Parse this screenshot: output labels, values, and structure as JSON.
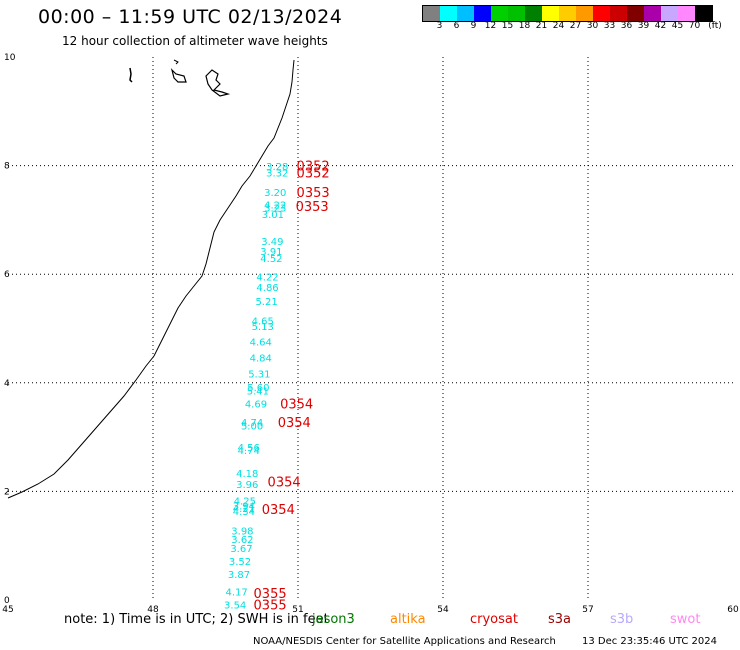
{
  "header": {
    "title": "00:00 – 11:59 UTC 02/13/2024",
    "subtitle": "12 hour collection of altimeter wave heights"
  },
  "legend": {
    "unit": "(ft)",
    "colors": [
      "#808080",
      "#00ffff",
      "#00bfff",
      "#0000ff",
      "#00d000",
      "#00c000",
      "#008000",
      "#ffff00",
      "#ffcc00",
      "#ff9900",
      "#ff0000",
      "#cc0000",
      "#800000",
      "#aa00aa",
      "#c8a8ff",
      "#ff88ff",
      "#000000"
    ],
    "labels": [
      "3",
      "6",
      "9",
      "12",
      "15",
      "18",
      "21",
      "24",
      "27",
      "30",
      "33",
      "36",
      "39",
      "42",
      "45",
      "70"
    ]
  },
  "axes": {
    "x_labels": [
      "45",
      "48",
      "51",
      "54",
      "57",
      "60"
    ],
    "y_labels": [
      "10",
      "8",
      "6",
      "4",
      "2",
      "0"
    ]
  },
  "observations": [
    {
      "lon": 50.57,
      "lat": 7.99,
      "text": "3.28",
      "color": "#00e0e0"
    },
    {
      "lon": 50.57,
      "lat": 7.87,
      "text": "3.32",
      "color": "#00e0e0"
    },
    {
      "lon": 50.53,
      "lat": 7.51,
      "text": "3.20",
      "color": "#00e0e0"
    },
    {
      "lon": 50.53,
      "lat": 7.28,
      "text": "4.22",
      "color": "#00e0e0"
    },
    {
      "lon": 50.53,
      "lat": 7.23,
      "text": "3.23",
      "color": "#00e0e0"
    },
    {
      "lon": 50.48,
      "lat": 7.11,
      "text": "3.01",
      "color": "#00e0e0"
    },
    {
      "lon": 50.47,
      "lat": 6.61,
      "text": "3.49",
      "color": "#00e0e0"
    },
    {
      "lon": 50.45,
      "lat": 6.43,
      "text": "3.91",
      "color": "#00e0e0"
    },
    {
      "lon": 50.45,
      "lat": 6.3,
      "text": "4.52",
      "color": "#00e0e0"
    },
    {
      "lon": 50.37,
      "lat": 5.96,
      "text": "4.22",
      "color": "#00e0e0"
    },
    {
      "lon": 50.37,
      "lat": 5.76,
      "text": "4.86",
      "color": "#00e0e0"
    },
    {
      "lon": 50.35,
      "lat": 5.51,
      "text": "5.21",
      "color": "#00e0e0"
    },
    {
      "lon": 50.27,
      "lat": 5.15,
      "text": "4.65",
      "color": "#00e0e0"
    },
    {
      "lon": 50.27,
      "lat": 5.05,
      "text": "5.13",
      "color": "#00e0e0"
    },
    {
      "lon": 50.23,
      "lat": 4.76,
      "text": "4.64",
      "color": "#00e0e0"
    },
    {
      "lon": 50.23,
      "lat": 4.47,
      "text": "4.84",
      "color": "#00e0e0"
    },
    {
      "lon": 50.2,
      "lat": 4.17,
      "text": "5.31",
      "color": "#00e0e0"
    },
    {
      "lon": 50.18,
      "lat": 3.92,
      "text": "5.60",
      "color": "#00e0e0"
    },
    {
      "lon": 50.17,
      "lat": 3.86,
      "text": "5.41",
      "color": "#00e0e0"
    },
    {
      "lon": 50.13,
      "lat": 3.62,
      "text": "4.69",
      "color": "#00e0e0"
    },
    {
      "lon": 50.05,
      "lat": 3.28,
      "text": "4.74",
      "color": "#00e0e0"
    },
    {
      "lon": 50.05,
      "lat": 3.21,
      "text": "5.00",
      "color": "#00e0e0"
    },
    {
      "lon": 49.98,
      "lat": 2.82,
      "text": "4.56",
      "color": "#00e0e0"
    },
    {
      "lon": 49.98,
      "lat": 2.76,
      "text": "4.74",
      "color": "#00e0e0"
    },
    {
      "lon": 49.95,
      "lat": 2.34,
      "text": "4.18",
      "color": "#00e0e0"
    },
    {
      "lon": 49.95,
      "lat": 2.14,
      "text": "3.96",
      "color": "#00e0e0"
    },
    {
      "lon": 49.9,
      "lat": 1.83,
      "text": "4.25",
      "color": "#00e0e0"
    },
    {
      "lon": 49.88,
      "lat": 1.74,
      "text": "3.94",
      "color": "#00e0e0"
    },
    {
      "lon": 49.88,
      "lat": 1.69,
      "text": "4.21",
      "color": "#00e0e0"
    },
    {
      "lon": 49.88,
      "lat": 1.64,
      "text": "4.34",
      "color": "#00e0e0"
    },
    {
      "lon": 49.85,
      "lat": 1.28,
      "text": "3.98",
      "color": "#00e0e0"
    },
    {
      "lon": 49.85,
      "lat": 1.12,
      "text": "3.62",
      "color": "#00e0e0"
    },
    {
      "lon": 49.83,
      "lat": 0.96,
      "text": "3.67",
      "color": "#00e0e0"
    },
    {
      "lon": 49.8,
      "lat": 0.72,
      "text": "3.52",
      "color": "#00e0e0"
    },
    {
      "lon": 49.78,
      "lat": 0.48,
      "text": "3.87",
      "color": "#00e0e0"
    },
    {
      "lon": 49.73,
      "lat": 0.16,
      "text": "4.17",
      "color": "#00e0e0"
    },
    {
      "lon": 49.7,
      "lat": -0.08,
      "text": "3.54",
      "color": "#00e0e0"
    }
  ],
  "pass_times": [
    {
      "lon": 50.97,
      "lat": 8.0,
      "text": "0352",
      "color": "#dd0000"
    },
    {
      "lon": 50.97,
      "lat": 7.87,
      "text": "0352",
      "color": "#dd0000"
    },
    {
      "lon": 50.97,
      "lat": 7.51,
      "text": "0353",
      "color": "#dd0000"
    },
    {
      "lon": 50.95,
      "lat": 7.26,
      "text": "0353",
      "color": "#dd0000"
    },
    {
      "lon": 50.63,
      "lat": 3.62,
      "text": "0354",
      "color": "#dd0000"
    },
    {
      "lon": 50.58,
      "lat": 3.28,
      "text": "0354",
      "color": "#dd0000"
    },
    {
      "lon": 50.37,
      "lat": 2.18,
      "text": "0354",
      "color": "#dd0000"
    },
    {
      "lon": 50.25,
      "lat": 1.68,
      "text": "0354",
      "color": "#dd0000"
    },
    {
      "lon": 50.08,
      "lat": 0.13,
      "text": "0355",
      "color": "#dd0000"
    },
    {
      "lon": 50.08,
      "lat": -0.08,
      "text": "0355",
      "color": "#dd0000"
    }
  ],
  "footer": {
    "note": "note: 1) Time is in UTC; 2) SWH is in feet",
    "satellites": [
      {
        "name": "jason3",
        "color": "#007700"
      },
      {
        "name": "altika",
        "color": "#ff8800"
      },
      {
        "name": "cryosat",
        "color": "#dd0000"
      },
      {
        "name": "s3a",
        "color": "#990000"
      },
      {
        "name": "s3b",
        "color": "#b8a8ff"
      },
      {
        "name": "swot",
        "color": "#ff88ee"
      }
    ],
    "credit": "NOAA/NESDIS Center for Satellite Applications and Research",
    "timestamp": "13 Dec 23:35:46 UTC 2024"
  }
}
